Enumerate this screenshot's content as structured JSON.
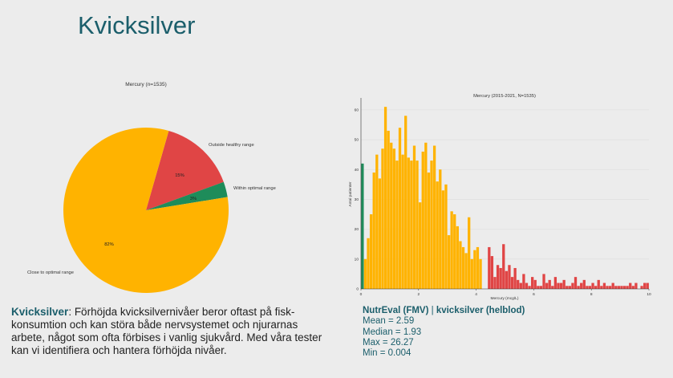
{
  "slide_title": "Kvicksilver",
  "description": {
    "term": "Kvicksilver",
    "text": ": Förhöjda kvicksilvernivåer beror oftast på fisk-konsumtion och kan störa både nervsystemet och njurarnas arbete, något som ofta förbises i vanlig sjukvård. Med våra tester kan vi identifiera och hantera förhöjda nivåer."
  },
  "stats": {
    "source": "NutrEval (FMV)",
    "separator": " | ",
    "subject": "kvicksilver (helblod)",
    "lines": [
      "Mean = 2.59",
      "Median = 1.93",
      "Max = 26.27",
      "Min = 0.004"
    ]
  },
  "colors": {
    "green": "#1e8c5a",
    "red": "#e04545",
    "yellow": "#ffb300",
    "title": "#1b5e6b"
  },
  "chart_data": [
    {
      "type": "pie",
      "title": "Mercury (n=1535)",
      "slices": [
        {
          "label": "Outside healthy range",
          "value": 15,
          "pct_label": "15%",
          "color": "#e04545"
        },
        {
          "label": "Within optimal range",
          "value": 3,
          "pct_label": "3%",
          "color": "#1e8c5a"
        },
        {
          "label": "Close to optimal range",
          "value": 82,
          "pct_label": "82%",
          "color": "#ffb300"
        }
      ]
    },
    {
      "type": "bar",
      "title": "Mercury (2015-2021, N=1535)",
      "xlabel": "Mercury (mcg/L)",
      "ylabel": "Antal patienter",
      "xlim": [
        0,
        10
      ],
      "ylim": [
        0,
        64
      ],
      "xticks": [
        0,
        2,
        4,
        6,
        8,
        10
      ],
      "yticks": [
        0,
        10,
        20,
        30,
        40,
        50,
        60
      ],
      "bin_width": 0.1,
      "thresholds": {
        "green_max": 0.1,
        "yellow_max": 4.3
      },
      "bin_starts": [
        0.0,
        0.1,
        0.2,
        0.3,
        0.4,
        0.5,
        0.6,
        0.7,
        0.8,
        0.9,
        1.0,
        1.1,
        1.2,
        1.3,
        1.4,
        1.5,
        1.6,
        1.7,
        1.8,
        1.9,
        2.0,
        2.1,
        2.2,
        2.3,
        2.4,
        2.5,
        2.6,
        2.7,
        2.8,
        2.9,
        3.0,
        3.1,
        3.2,
        3.3,
        3.4,
        3.5,
        3.6,
        3.7,
        3.8,
        3.9,
        4.0,
        4.1,
        4.2,
        4.3,
        4.4,
        4.5,
        4.6,
        4.7,
        4.8,
        4.9,
        5.0,
        5.1,
        5.2,
        5.3,
        5.4,
        5.5,
        5.6,
        5.7,
        5.8,
        5.9,
        6.0,
        6.1,
        6.2,
        6.3,
        6.4,
        6.5,
        6.6,
        6.7,
        6.8,
        6.9,
        7.0,
        7.1,
        7.2,
        7.3,
        7.4,
        7.5,
        7.6,
        7.7,
        7.8,
        7.9,
        8.0,
        8.1,
        8.2,
        8.3,
        8.4,
        8.5,
        8.6,
        8.7,
        8.8,
        8.9,
        9.0,
        9.1,
        9.2,
        9.3,
        9.4,
        9.5,
        9.6,
        9.7,
        9.8,
        9.9
      ],
      "values": [
        42,
        10,
        17,
        25,
        39,
        45,
        37,
        47,
        61,
        53,
        49,
        47,
        43,
        54,
        45,
        58,
        44,
        43,
        48,
        43,
        29,
        46,
        49,
        39,
        43,
        48,
        36,
        40,
        33,
        35,
        18,
        26,
        25,
        21,
        16,
        14,
        12,
        24,
        10,
        13,
        14,
        10,
        0,
        0,
        14,
        11,
        4,
        8,
        7,
        15,
        6,
        8,
        4,
        7,
        3,
        2,
        5,
        2,
        1,
        4,
        3,
        1,
        1,
        5,
        2,
        3,
        1,
        4,
        2,
        2,
        3,
        1,
        1,
        2,
        4,
        1,
        2,
        3,
        1,
        1,
        2,
        1,
        3,
        1,
        2,
        1,
        1,
        2,
        1,
        1,
        1,
        1,
        1,
        2,
        1,
        2,
        0,
        1,
        2,
        2
      ]
    }
  ]
}
